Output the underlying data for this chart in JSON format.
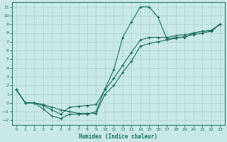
{
  "xlabel": "Humidex (Indice chaleur)",
  "bg_color": "#c8eae4",
  "line_color": "#1a6b5a",
  "grid_color": "#b0d8d0",
  "xlim": [
    -0.5,
    23.5
  ],
  "ylim": [
    -2.5,
    11.5
  ],
  "xticks": [
    0,
    1,
    2,
    3,
    4,
    5,
    6,
    7,
    8,
    9,
    10,
    11,
    12,
    13,
    14,
    15,
    16,
    17,
    18,
    19,
    20,
    21,
    22,
    23
  ],
  "yticks": [
    -2,
    -1,
    0,
    1,
    2,
    3,
    4,
    5,
    6,
    7,
    8,
    9,
    10,
    11
  ],
  "series": [
    {
      "x": [
        0,
        1,
        2,
        3,
        4,
        5,
        6,
        7,
        8,
        9,
        10,
        11,
        12,
        13,
        14,
        15,
        16,
        17,
        18,
        19,
        20,
        21,
        22,
        23
      ],
      "y": [
        1.5,
        0.0,
        0.0,
        -0.7,
        -1.5,
        -1.8,
        -1.3,
        -1.3,
        -1.3,
        -1.0,
        1.6,
        3.8,
        7.5,
        9.3,
        11.0,
        11.0,
        9.8,
        7.3,
        7.5,
        7.5,
        8.0,
        8.2,
        8.3,
        9.0
      ]
    },
    {
      "x": [
        0,
        1,
        2,
        3,
        4,
        5,
        6,
        7,
        8,
        9,
        10,
        11,
        12,
        13,
        14,
        15,
        16,
        17,
        18,
        19,
        20,
        21,
        22,
        23
      ],
      "y": [
        1.5,
        0.0,
        0.0,
        -0.3,
        -0.8,
        -1.3,
        -0.5,
        -0.4,
        -0.3,
        -0.2,
        1.5,
        2.8,
        4.3,
        5.8,
        7.2,
        7.5,
        7.5,
        7.5,
        7.7,
        7.8,
        8.0,
        8.2,
        8.3,
        9.0
      ]
    },
    {
      "x": [
        0,
        1,
        2,
        3,
        4,
        5,
        6,
        7,
        8,
        9,
        10,
        11,
        12,
        13,
        14,
        15,
        16,
        17,
        18,
        19,
        20,
        21,
        22,
        23
      ],
      "y": [
        1.5,
        0.0,
        0.0,
        -0.2,
        -0.5,
        -0.8,
        -1.0,
        -1.2,
        -1.2,
        -1.2,
        1.0,
        2.0,
        3.5,
        4.8,
        6.5,
        6.8,
        7.0,
        7.2,
        7.4,
        7.6,
        7.8,
        8.0,
        8.2,
        9.0
      ]
    }
  ]
}
